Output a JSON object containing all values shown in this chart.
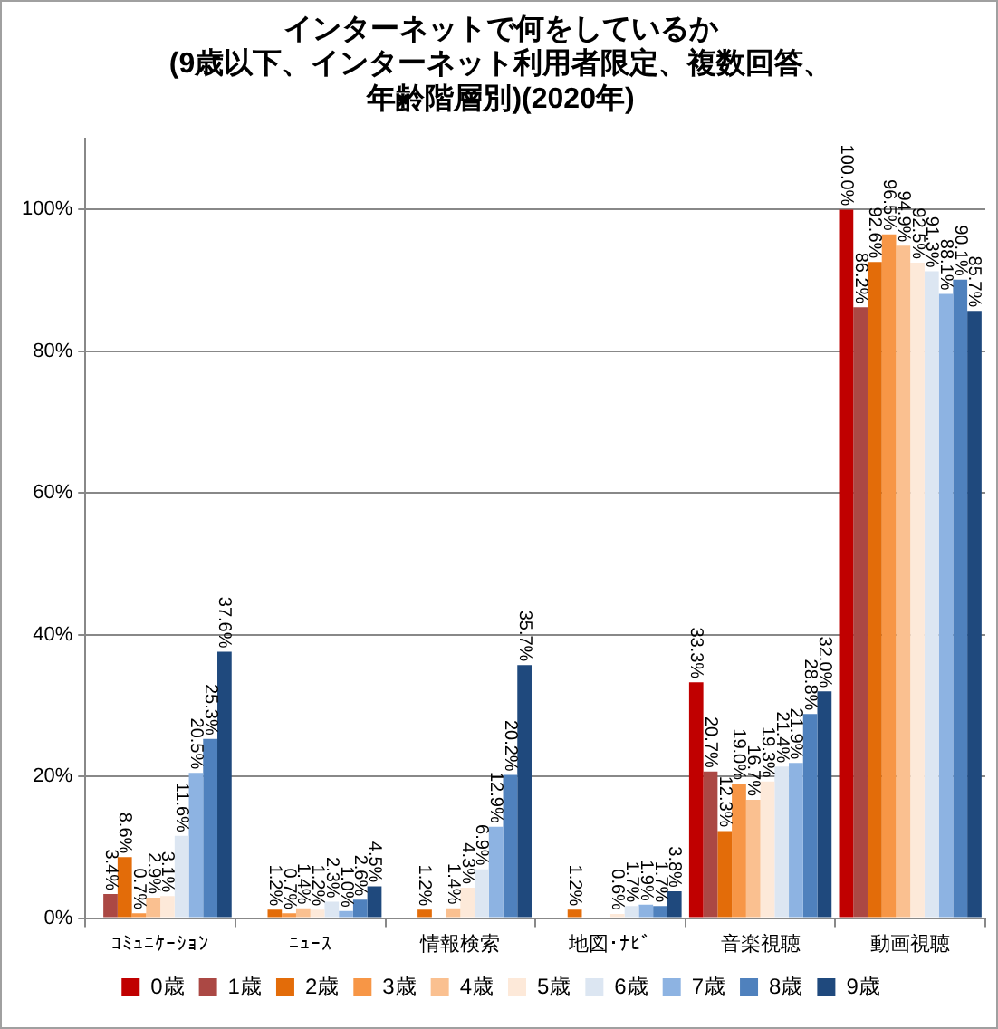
{
  "chart_data": {
    "type": "bar",
    "title": "インターネットで何をしているか(9歳以下、インターネット利用者限定、複数回答、年齢階層別)(2020年)",
    "categories": [
      "ｺﾐｭﾆｹｰｼｮﾝ",
      "ﾆｭｰｽ",
      "情報検索",
      "地図･ﾅﾋﾞ",
      "音楽視聴",
      "動画視聴"
    ],
    "series": [
      {
        "name": "0歳",
        "color": "#c00000",
        "values": [
          0,
          0,
          0,
          0,
          33.3,
          100.0
        ],
        "value_labels": [
          null,
          null,
          null,
          null,
          "33.3%",
          "100.0%"
        ]
      },
      {
        "name": "1歳",
        "color": "#ab4844",
        "values": [
          3.4,
          0,
          0,
          0,
          20.7,
          86.2
        ],
        "value_labels": [
          "3.4%",
          null,
          null,
          null,
          "20.7%",
          "86.2%"
        ]
      },
      {
        "name": "2歳",
        "color": "#e36c09",
        "values": [
          8.6,
          1.2,
          1.2,
          1.2,
          12.3,
          92.6
        ],
        "value_labels": [
          "8.6%",
          "1.2%",
          "1.2%",
          "1.2%",
          "12.3%",
          "92.6%"
        ]
      },
      {
        "name": "3歳",
        "color": "#f79646",
        "values": [
          0.7,
          0.7,
          0,
          0,
          19.0,
          96.5
        ],
        "value_labels": [
          "0.7%",
          "0.7%",
          null,
          null,
          "19.0%",
          "96.5%"
        ]
      },
      {
        "name": "4歳",
        "color": "#fac090",
        "values": [
          2.9,
          1.4,
          1.4,
          0,
          16.7,
          94.9
        ],
        "value_labels": [
          "2.9%",
          "1.4%",
          "1.4%",
          null,
          "16.7%",
          "94.9%"
        ]
      },
      {
        "name": "5歳",
        "color": "#fde9d9",
        "values": [
          3.1,
          1.2,
          4.3,
          0.6,
          19.3,
          92.5
        ],
        "value_labels": [
          "3.1%",
          "1.2%",
          "4.3%",
          "0.6%",
          "19.3%",
          "92.5%"
        ]
      },
      {
        "name": "6歳",
        "color": "#dce6f2",
        "values": [
          11.6,
          2.3,
          6.9,
          1.7,
          21.4,
          91.3
        ],
        "value_labels": [
          "11.6%",
          "2.3%",
          "6.9%",
          "1.7%",
          "21.4%",
          "91.3%"
        ]
      },
      {
        "name": "7歳",
        "color": "#8db3e2",
        "values": [
          20.5,
          1.0,
          12.9,
          1.9,
          21.9,
          88.1
        ],
        "value_labels": [
          "20.5%",
          "1.0%",
          "12.9%",
          "1.9%",
          "21.9%",
          "88.1%"
        ]
      },
      {
        "name": "8歳",
        "color": "#4f81bd",
        "values": [
          25.3,
          2.6,
          20.2,
          1.7,
          28.8,
          90.1
        ],
        "value_labels": [
          "25.3%",
          "2.6%",
          "20.2%",
          "1.7%",
          "28.8%",
          "90.1%"
        ]
      },
      {
        "name": "9歳",
        "color": "#1f497d",
        "values": [
          37.6,
          4.5,
          35.7,
          3.8,
          32.0,
          85.7
        ],
        "value_labels": [
          "37.6%",
          "4.5%",
          "35.7%",
          "3.8%",
          "32.0%",
          "85.7%"
        ]
      }
    ],
    "ylim": [
      0,
      110
    ],
    "yticks": [
      {
        "value": 0,
        "label": "0%"
      },
      {
        "value": 20,
        "label": "20%"
      },
      {
        "value": 40,
        "label": "40%"
      },
      {
        "value": 60,
        "label": "60%"
      },
      {
        "value": 80,
        "label": "80%"
      },
      {
        "value": 100,
        "label": "100%"
      }
    ],
    "grid": "y",
    "legend": "bottom"
  }
}
